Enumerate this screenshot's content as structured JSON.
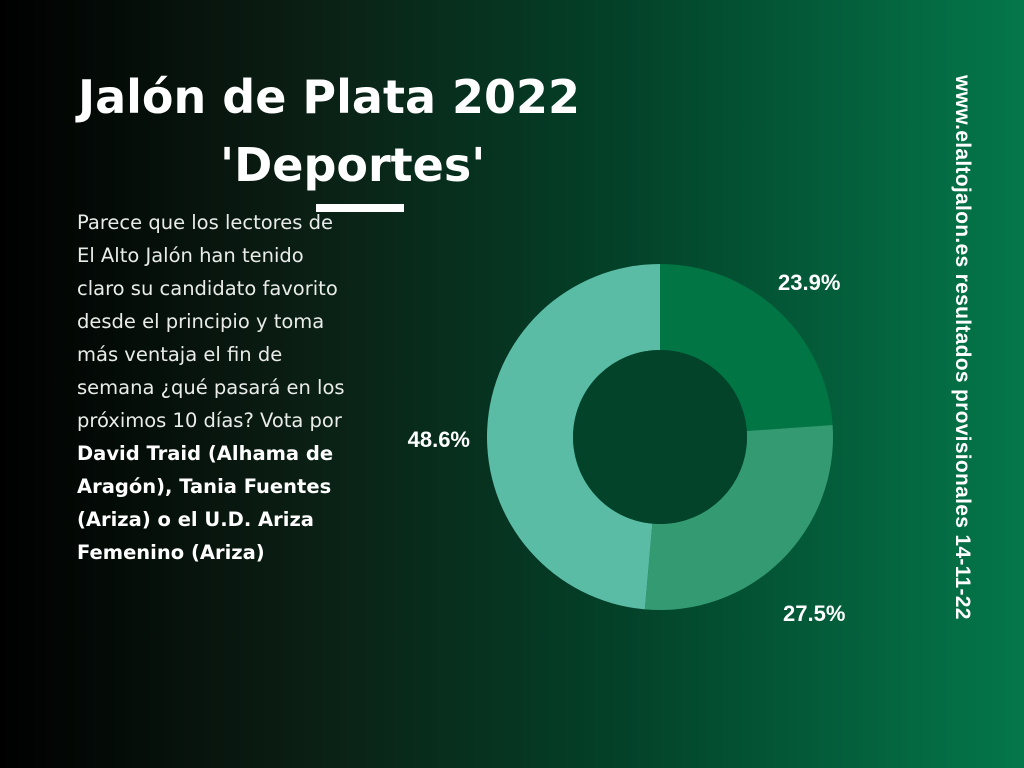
{
  "header": {
    "title": "Jalón de Plata 2022",
    "subtitle": "'Deportes'"
  },
  "description": {
    "intro": "Parece que los lectores de El Alto Jalón han tenido claro su candidato favorito desde el principio y toma más ventaja el fin de semana ¿qué pasará en los próximos 10 días? Vota por ",
    "name1": "David Traid",
    "sep1": " ",
    "place1": "(Alhama de Aragón)",
    "sep2": ", ",
    "name2": "Tania Fuentes",
    "sep3": " ",
    "place2": "(Ariza)",
    "sep4": " o el ",
    "name3": "U.D. Ariza Femenino",
    "sep5": " ",
    "place3": "(Ariza)"
  },
  "side_text": "www.elaltojalon.es  resultados provisionales 14-11-22",
  "colors": {
    "slice1": "#017543",
    "slice2": "#349a71",
    "slice3": "#5bbca5"
  },
  "chart_data": {
    "type": "pie",
    "donut": true,
    "values": [
      23.9,
      27.5,
      48.6
    ],
    "labels": [
      "23.9%",
      "27.5%",
      "48.6%"
    ],
    "colors": [
      "#017543",
      "#349a71",
      "#5bbca5"
    ]
  }
}
